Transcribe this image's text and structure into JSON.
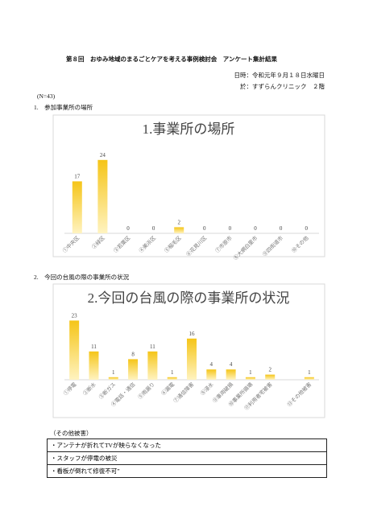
{
  "header": {
    "title": "第８回　おゆみ地域のまるごとケアを考える事例検討会　アンケート集計結果",
    "date": "日時：令和元年９月１８日水曜日",
    "place": "於：すずらんクリニック　２階",
    "n": "(N=43)"
  },
  "sections": [
    "1.　参加事業所の場所",
    "2.　今回の台風の際の事業所の状況"
  ],
  "chart_data": [
    {
      "type": "bar",
      "title": "1.事業所の場所",
      "color": "#f5c518",
      "categories": [
        "①中央区",
        "②緑区",
        "③若葉区",
        "④美浜区",
        "⑤稲毛区",
        "⑥花見川区",
        "⑦市原市",
        "⑧大網白里市",
        "⑨四街道市",
        "⑩その他"
      ],
      "values": [
        17,
        24,
        0,
        0,
        2,
        0,
        0,
        0,
        0,
        0
      ],
      "ylim": [
        0,
        30
      ]
    },
    {
      "type": "bar",
      "title": "2.今回の台風の際の事業所の状況",
      "color": "#f5c518",
      "categories": [
        "①停電",
        "②断水",
        "③断ガス",
        "④電話・通信",
        "⑤雨漏り",
        "⑥漏電",
        "⑦通信障害",
        "⑧浸水",
        "⑨車両破損",
        "⑩事業所損壊",
        "⑪利用者宅被害",
        null,
        "⑬その他被害"
      ],
      "values": [
        23,
        11,
        1,
        8,
        11,
        1,
        16,
        4,
        4,
        1,
        2,
        null,
        1
      ],
      "ylim": [
        0,
        30
      ]
    }
  ],
  "other": {
    "heading": "（その他被害）",
    "items": [
      "・アンテナが折れてTVが映らなくなった",
      "・スタッフが停電の被災",
      "・看板が倒れて修復不可”"
    ]
  }
}
